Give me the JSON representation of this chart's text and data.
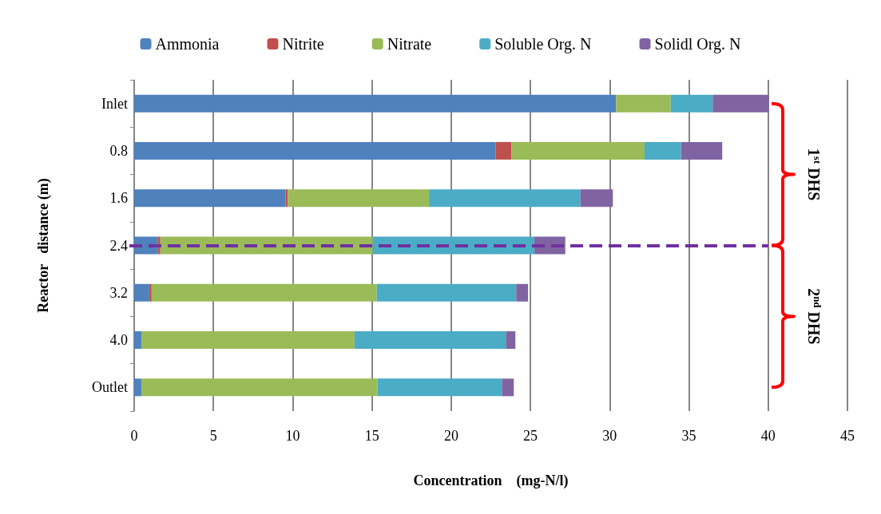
{
  "chart_data": {
    "type": "bar",
    "orientation": "horizontal",
    "stacked": true,
    "xlabel": "Concentration    (mg-N/l)",
    "ylabel": "Reactor   distance (m)",
    "categories": [
      "Inlet",
      "0.8",
      "1.6",
      "2.4",
      "3.2",
      "4.0",
      "Outlet"
    ],
    "series": [
      {
        "name": "Ammonia",
        "color": "#4f81bd",
        "values": [
          30.4,
          22.8,
          9.55,
          1.5,
          0.95,
          0.45,
          0.45
        ]
      },
      {
        "name": "Nitrite",
        "color": "#c0504d",
        "values": [
          0,
          1.0,
          0.15,
          0.15,
          0.15,
          0,
          0
        ]
      },
      {
        "name": "Nitrate",
        "color": "#9bbb59",
        "values": [
          3.45,
          8.4,
          8.9,
          13.4,
          14.2,
          13.45,
          14.9
        ]
      },
      {
        "name": "Soluble Org. N",
        "color": "#4bacc6",
        "values": [
          2.65,
          2.3,
          9.55,
          10.2,
          8.8,
          9.55,
          7.85
        ]
      },
      {
        "name": "Solidl Org. N",
        "color": "#8064a2",
        "values": [
          3.55,
          2.6,
          2.05,
          1.95,
          0.75,
          0.6,
          0.75
        ]
      }
    ],
    "xlim": [
      0,
      45
    ],
    "xticks": [
      0,
      5,
      10,
      15,
      20,
      25,
      30,
      35,
      40,
      45
    ],
    "grid": "x",
    "legend": "top",
    "ref_lines": [
      {
        "axis": "y",
        "value": "2.4",
        "color": "#7030a0",
        "line_style": "dashed"
      }
    ],
    "annotations": [
      "1$^{st}$ DHS",
      "2$^{nd}$ DHS"
    ]
  }
}
